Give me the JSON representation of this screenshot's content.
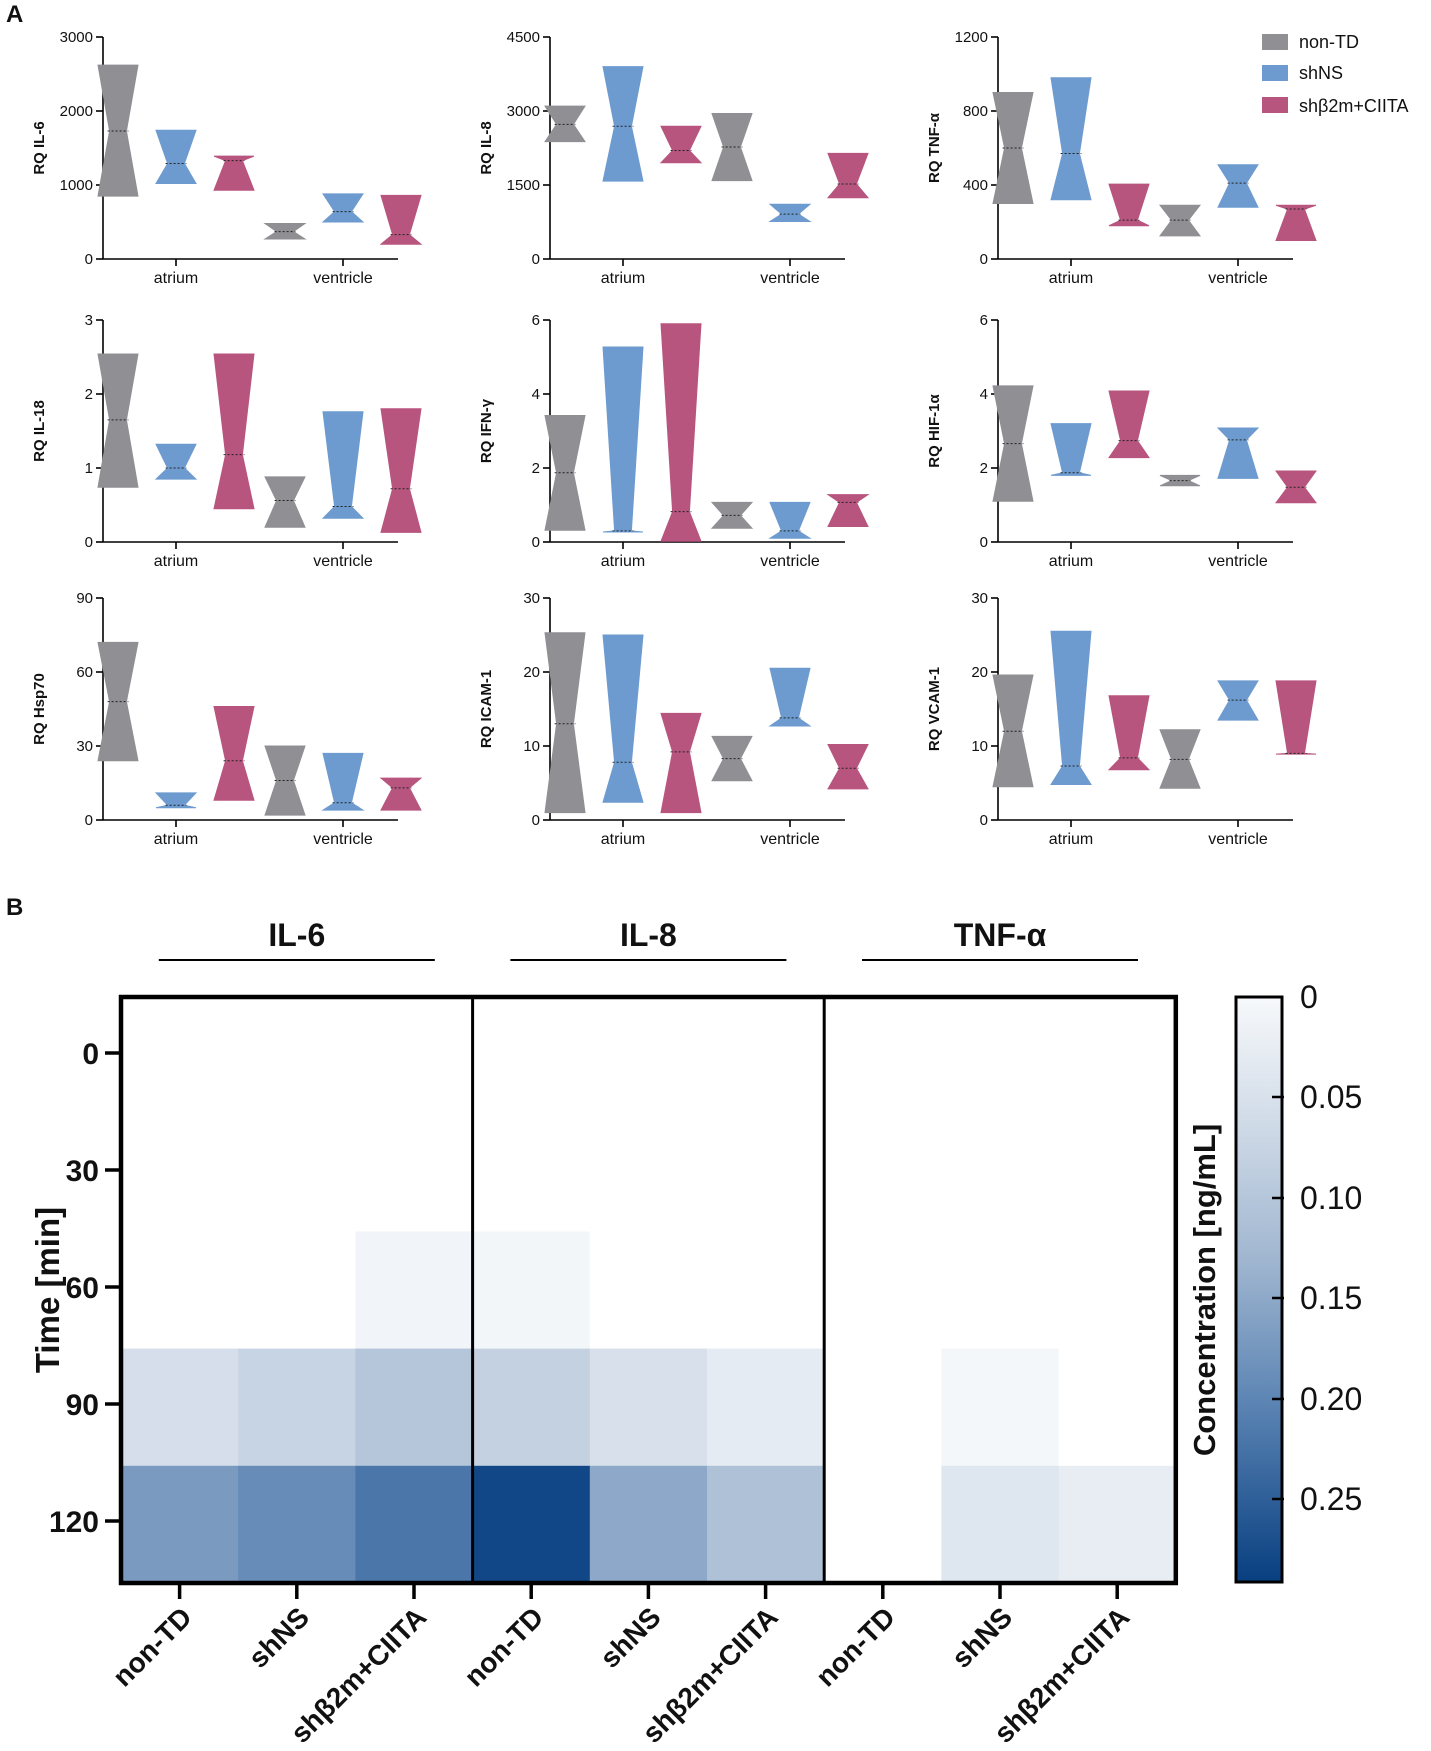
{
  "colors": {
    "non_td": "#8f8f94",
    "shns": "#6d9bcf",
    "shb2m": "#b8557f",
    "axis": "#000000"
  },
  "panel_labels": {
    "a": "A",
    "b": "B"
  },
  "legend": {
    "entries": [
      "non-TD",
      "shNS",
      "shβ2m+CIITA"
    ]
  },
  "chart_data": [
    {
      "type": "violin",
      "title": "",
      "ylabel": "RQ IL-6",
      "ylim": [
        0,
        3000
      ],
      "yticks": [
        "0",
        "1000",
        "2000",
        "3000"
      ],
      "categories": [
        "atrium",
        "ventricle"
      ],
      "series": [
        {
          "name": "non-TD",
          "atrium": {
            "min": 850,
            "max": 2620,
            "median": 1730
          },
          "ventricle": {
            "min": 270,
            "max": 480,
            "median": 370
          }
        },
        {
          "name": "shNS",
          "atrium": {
            "min": 1020,
            "max": 1740,
            "median": 1290
          },
          "ventricle": {
            "min": 500,
            "max": 880,
            "median": 640
          }
        },
        {
          "name": "shβ2m+CIITA",
          "atrium": {
            "min": 930,
            "max": 1390,
            "median": 1330
          },
          "ventricle": {
            "min": 200,
            "max": 860,
            "median": 330
          }
        }
      ]
    },
    {
      "type": "violin",
      "title": "",
      "ylabel": "RQ IL-8",
      "ylim": [
        0,
        4500
      ],
      "yticks": [
        "0",
        "1500",
        "3000",
        "4500"
      ],
      "categories": [
        "atrium",
        "ventricle"
      ],
      "series": [
        {
          "name": "non-TD",
          "atrium": {
            "min": 2380,
            "max": 3100,
            "median": 2730
          },
          "ventricle": {
            "min": 1590,
            "max": 2950,
            "median": 2270
          }
        },
        {
          "name": "shNS",
          "atrium": {
            "min": 1580,
            "max": 3900,
            "median": 2690
          },
          "ventricle": {
            "min": 760,
            "max": 1110,
            "median": 910
          }
        },
        {
          "name": "shβ2m+CIITA",
          "atrium": {
            "min": 1950,
            "max": 2690,
            "median": 2200
          },
          "ventricle": {
            "min": 1240,
            "max": 2140,
            "median": 1520
          }
        }
      ]
    },
    {
      "type": "violin",
      "title": "",
      "ylabel": "RQ TNF-α",
      "ylim": [
        0,
        1200
      ],
      "yticks": [
        "0",
        "400",
        "800",
        "1200"
      ],
      "categories": [
        "atrium",
        "ventricle"
      ],
      "series": [
        {
          "name": "non-TD",
          "atrium": {
            "min": 300,
            "max": 900,
            "median": 600
          },
          "ventricle": {
            "min": 125,
            "max": 290,
            "median": 210
          }
        },
        {
          "name": "shNS",
          "atrium": {
            "min": 320,
            "max": 980,
            "median": 570
          },
          "ventricle": {
            "min": 280,
            "max": 510,
            "median": 410
          }
        },
        {
          "name": "shβ2m+CIITA",
          "atrium": {
            "min": 180,
            "max": 405,
            "median": 210
          },
          "ventricle": {
            "min": 100,
            "max": 290,
            "median": 270
          }
        }
      ]
    },
    {
      "type": "violin",
      "title": "",
      "ylabel": "RQ IL-18",
      "ylim": [
        0,
        3
      ],
      "yticks": [
        "0",
        "1",
        "2",
        "3"
      ],
      "categories": [
        "atrium",
        "ventricle"
      ],
      "series": [
        {
          "name": "non-TD",
          "atrium": {
            "min": 0.74,
            "max": 2.54,
            "median": 1.65
          },
          "ventricle": {
            "min": 0.2,
            "max": 0.88,
            "median": 0.56
          }
        },
        {
          "name": "shNS",
          "atrium": {
            "min": 0.85,
            "max": 1.32,
            "median": 1.0
          },
          "ventricle": {
            "min": 0.32,
            "max": 1.76,
            "median": 0.48
          }
        },
        {
          "name": "shβ2m+CIITA",
          "atrium": {
            "min": 0.45,
            "max": 2.54,
            "median": 1.18
          },
          "ventricle": {
            "min": 0.13,
            "max": 1.8,
            "median": 0.72
          }
        }
      ]
    },
    {
      "type": "violin",
      "title": "",
      "ylabel": "RQ IFN-γ",
      "ylim": [
        0,
        6
      ],
      "yticks": [
        "0",
        "2",
        "4",
        "6"
      ],
      "categories": [
        "atrium",
        "ventricle"
      ],
      "series": [
        {
          "name": "non-TD",
          "atrium": {
            "min": 0.32,
            "max": 3.42,
            "median": 1.87
          },
          "ventricle": {
            "min": 0.37,
            "max": 1.07,
            "median": 0.72
          }
        },
        {
          "name": "shNS",
          "atrium": {
            "min": 0.27,
            "max": 5.27,
            "median": 0.3
          },
          "ventricle": {
            "min": 0.1,
            "max": 1.07,
            "median": 0.3
          }
        },
        {
          "name": "shβ2m+CIITA",
          "atrium": {
            "min": 0.02,
            "max": 5.9,
            "median": 0.82
          },
          "ventricle": {
            "min": 0.42,
            "max": 1.28,
            "median": 1.07
          }
        }
      ]
    },
    {
      "type": "violin",
      "title": "",
      "ylabel": "RQ HIF-1α",
      "ylim": [
        0,
        6
      ],
      "yticks": [
        "0",
        "2",
        "4",
        "6"
      ],
      "categories": [
        "atrium",
        "ventricle"
      ],
      "series": [
        {
          "name": "non-TD",
          "atrium": {
            "min": 1.1,
            "max": 4.22,
            "median": 2.66
          },
          "ventricle": {
            "min": 1.52,
            "max": 1.8,
            "median": 1.66
          }
        },
        {
          "name": "shNS",
          "atrium": {
            "min": 1.8,
            "max": 3.2,
            "median": 1.87
          },
          "ventricle": {
            "min": 1.72,
            "max": 3.08,
            "median": 2.76
          }
        },
        {
          "name": "shβ2m+CIITA",
          "atrium": {
            "min": 2.28,
            "max": 4.08,
            "median": 2.74
          },
          "ventricle": {
            "min": 1.06,
            "max": 1.92,
            "median": 1.48
          }
        }
      ]
    },
    {
      "type": "violin",
      "title": "",
      "ylabel": "RQ Hsp70",
      "ylim": [
        0,
        90
      ],
      "yticks": [
        "0",
        "30",
        "60",
        "90"
      ],
      "categories": [
        "atrium",
        "ventricle"
      ],
      "series": [
        {
          "name": "non-TD",
          "atrium": {
            "min": 24,
            "max": 72,
            "median": 48
          },
          "ventricle": {
            "min": 2,
            "max": 30,
            "median": 16
          }
        },
        {
          "name": "shNS",
          "atrium": {
            "min": 5,
            "max": 11,
            "median": 6
          },
          "ventricle": {
            "min": 4,
            "max": 27,
            "median": 7
          }
        },
        {
          "name": "shβ2m+CIITA",
          "atrium": {
            "min": 8,
            "max": 46,
            "median": 24
          },
          "ventricle": {
            "min": 4,
            "max": 17,
            "median": 13
          }
        }
      ]
    },
    {
      "type": "violin",
      "title": "",
      "ylabel": "RQ ICAM-1",
      "ylim": [
        0,
        30
      ],
      "yticks": [
        "0",
        "10",
        "20",
        "30"
      ],
      "categories": [
        "atrium",
        "ventricle"
      ],
      "series": [
        {
          "name": "non-TD",
          "atrium": {
            "min": 1,
            "max": 25.3,
            "median": 13
          },
          "ventricle": {
            "min": 5.3,
            "max": 11.3,
            "median": 8.3
          }
        },
        {
          "name": "shNS",
          "atrium": {
            "min": 2.4,
            "max": 25,
            "median": 7.8
          },
          "ventricle": {
            "min": 12.7,
            "max": 20.5,
            "median": 13.8
          }
        },
        {
          "name": "shβ2m+CIITA",
          "atrium": {
            "min": 1,
            "max": 14.4,
            "median": 9.2
          },
          "ventricle": {
            "min": 4.2,
            "max": 10.2,
            "median": 7
          }
        }
      ]
    },
    {
      "type": "violin",
      "title": "",
      "ylabel": "RQ VCAM-1",
      "ylim": [
        0,
        30
      ],
      "yticks": [
        "0",
        "10",
        "20",
        "30"
      ],
      "categories": [
        "atrium",
        "ventricle"
      ],
      "series": [
        {
          "name": "non-TD",
          "atrium": {
            "min": 4.5,
            "max": 19.6,
            "median": 12
          },
          "ventricle": {
            "min": 4.3,
            "max": 12.2,
            "median": 8.2
          }
        },
        {
          "name": "shNS",
          "atrium": {
            "min": 4.8,
            "max": 25.5,
            "median": 7.3
          },
          "ventricle": {
            "min": 13.5,
            "max": 18.8,
            "median": 16.2
          }
        },
        {
          "name": "shβ2m+CIITA",
          "atrium": {
            "min": 6.8,
            "max": 16.8,
            "median": 8.4
          },
          "ventricle": {
            "min": 8.9,
            "max": 18.8,
            "median": 9
          }
        }
      ]
    },
    {
      "type": "heatmap",
      "title": "",
      "groups": [
        "IL-6",
        "IL-8",
        "TNF-α"
      ],
      "columns": [
        "non-TD",
        "shNS",
        "shβ2m+CIITA",
        "non-TD",
        "shNS",
        "shβ2m+CIITA",
        "non-TD",
        "shNS",
        "shβ2m+CIITA"
      ],
      "rows": [
        "0",
        "30",
        "60",
        "90",
        "120"
      ],
      "ylabel": "Time [min]",
      "colorbar_label": "Concentration [ng/mL]",
      "colorbar_ticks": [
        "0",
        "0.05",
        "0.10",
        "0.15",
        "0.20",
        "0.25"
      ],
      "color_range": [
        0,
        0.29
      ],
      "values": [
        [
          0,
          0,
          0,
          0,
          0,
          0,
          0,
          0,
          0
        ],
        [
          0,
          0,
          0,
          0,
          0,
          0,
          0,
          0,
          0
        ],
        [
          0,
          0,
          0.01,
          0.007,
          0,
          0,
          0,
          0,
          0
        ],
        [
          0.055,
          0.075,
          0.1,
          0.08,
          0.05,
          0.03,
          0,
          0.005,
          0
        ],
        [
          0.17,
          0.19,
          0.22,
          0.28,
          0.15,
          0.11,
          0,
          0.04,
          0.025
        ]
      ]
    }
  ]
}
